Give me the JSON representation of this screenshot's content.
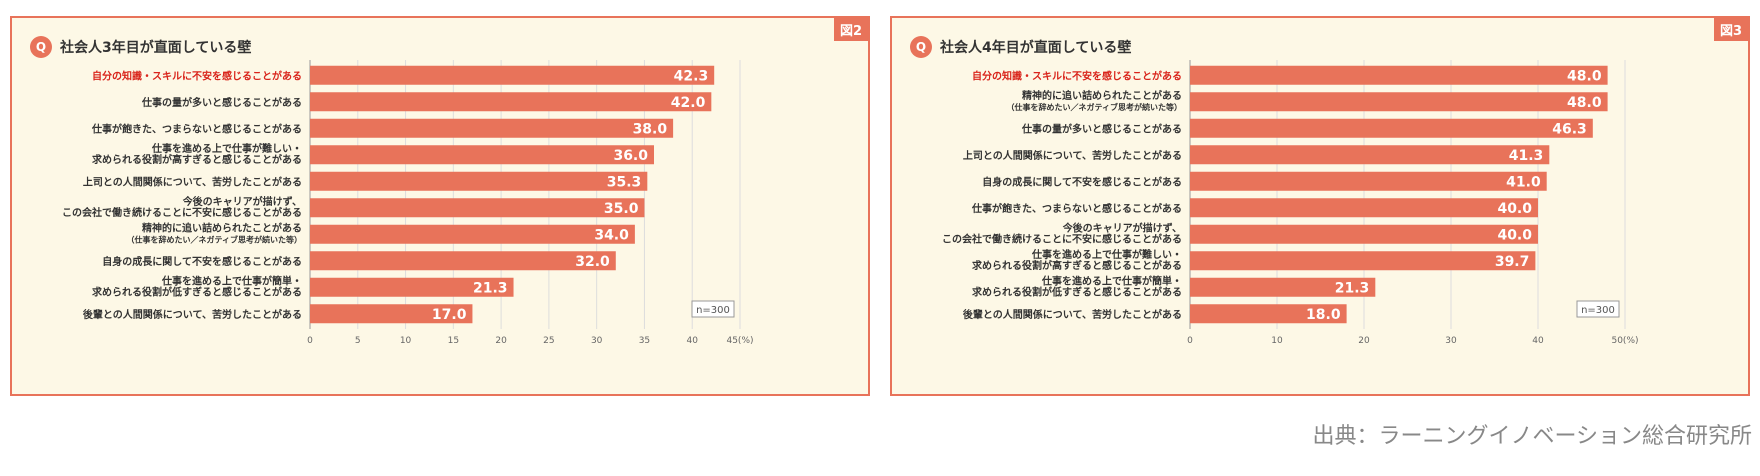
{
  "source_text": "出典：ラーニングイノベーション総合研究所",
  "colors": {
    "bar": "#e8735a",
    "highlight_text": "#d9241b",
    "panel_bg": "#fdf8e6"
  },
  "chart_data": [
    {
      "type": "bar",
      "figure_tag": "図2",
      "title": "社会人3年目が直面している壁",
      "n_label": "n=300",
      "xlim": [
        0,
        45
      ],
      "xticks": [
        "0",
        "5",
        "10",
        "15",
        "20",
        "25",
        "30",
        "35",
        "40",
        "45(%)"
      ],
      "categories": [
        [
          "自分の知識・スキルに不安を感じることがある"
        ],
        [
          "仕事の量が多いと感じることがある"
        ],
        [
          "仕事が飽きた、つまらないと感じることがある"
        ],
        [
          "仕事を進める上で仕事が難しい・",
          "求められる役割が高すぎると感じることがある"
        ],
        [
          "上司との人間関係について、苦労したことがある"
        ],
        [
          "今後のキャリアが描けず、",
          "この会社で働き続けることに不安に感じることがある"
        ],
        [
          "精神的に追い詰められたことがある",
          "（仕事を辞めたい／ネガティブ思考が続いた等）"
        ],
        [
          "自身の成長に関して不安を感じることがある"
        ],
        [
          "仕事を進める上で仕事が簡単・",
          "求められる役割が低すぎると感じることがある"
        ],
        [
          "後輩との人間関係について、苦労したことがある"
        ]
      ],
      "values": [
        42.3,
        42.0,
        38.0,
        36.0,
        35.3,
        35.0,
        34.0,
        32.0,
        21.3,
        17.0
      ],
      "value_labels": [
        "42.3",
        "42.0",
        "38.0",
        "36.0",
        "35.3",
        "35.0",
        "34.0",
        "32.0",
        "21.3",
        "17.0"
      ],
      "highlight_index": 0
    },
    {
      "type": "bar",
      "figure_tag": "図3",
      "title": "社会人4年目が直面している壁",
      "n_label": "n=300",
      "xlim": [
        0,
        50
      ],
      "xticks": [
        "0",
        "10",
        "20",
        "30",
        "40",
        "50(%)"
      ],
      "categories": [
        [
          "自分の知識・スキルに不安を感じることがある"
        ],
        [
          "精神的に追い詰められたことがある",
          "（仕事を辞めたい／ネガティブ思考が続いた等）"
        ],
        [
          "仕事の量が多いと感じることがある"
        ],
        [
          "上司との人間関係について、苦労したことがある"
        ],
        [
          "自身の成長に関して不安を感じることがある"
        ],
        [
          "仕事が飽きた、つまらないと感じることがある"
        ],
        [
          "今後のキャリアが描けず、",
          "この会社で働き続けることに不安に感じることがある"
        ],
        [
          "仕事を進める上で仕事が難しい・",
          "求められる役割が高すぎると感じることがある"
        ],
        [
          "仕事を進める上で仕事が簡単・",
          "求められる役割が低すぎると感じることがある"
        ],
        [
          "後輩との人間関係について、苦労したことがある"
        ]
      ],
      "values": [
        48.0,
        48.0,
        46.3,
        41.3,
        41.0,
        40.0,
        40.0,
        39.7,
        21.3,
        18.0
      ],
      "value_labels": [
        "48.0",
        "48.0",
        "46.3",
        "41.3",
        "41.0",
        "40.0",
        "40.0",
        "39.7",
        "21.3",
        "18.0"
      ],
      "highlight_index": 0
    }
  ]
}
